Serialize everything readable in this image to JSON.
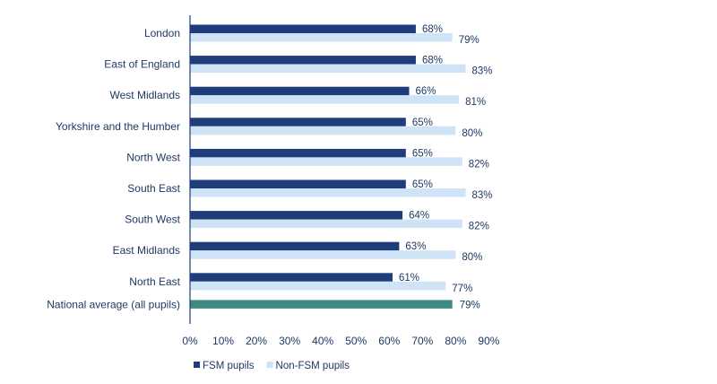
{
  "chart_data": {
    "type": "bar",
    "orientation": "horizontal",
    "title": "",
    "xlabel": "",
    "ylabel": "",
    "xlim": [
      0,
      90
    ],
    "x_ticks": [
      0,
      10,
      20,
      30,
      40,
      50,
      60,
      70,
      80,
      90
    ],
    "tick_format": "{v}%",
    "categories": [
      "London",
      "East of England",
      "West Midlands",
      "Yorkshire and the Humber",
      "North West",
      "South East",
      "South West",
      "East Midlands",
      "North East"
    ],
    "series": [
      {
        "name": "FSM pupils",
        "color": "#1f3d7a",
        "values": [
          68,
          68,
          66,
          65,
          65,
          65,
          64,
          63,
          61
        ]
      },
      {
        "name": "Non-FSM pupils",
        "color": "#cfe3f7",
        "values": [
          79,
          83,
          81,
          80,
          82,
          83,
          82,
          80,
          77
        ]
      }
    ],
    "reference_bar": {
      "label": "National average (all pupils)",
      "value": 79,
      "color": "#3e8a80"
    },
    "legend": {
      "position": "bottom"
    },
    "grid": false
  }
}
